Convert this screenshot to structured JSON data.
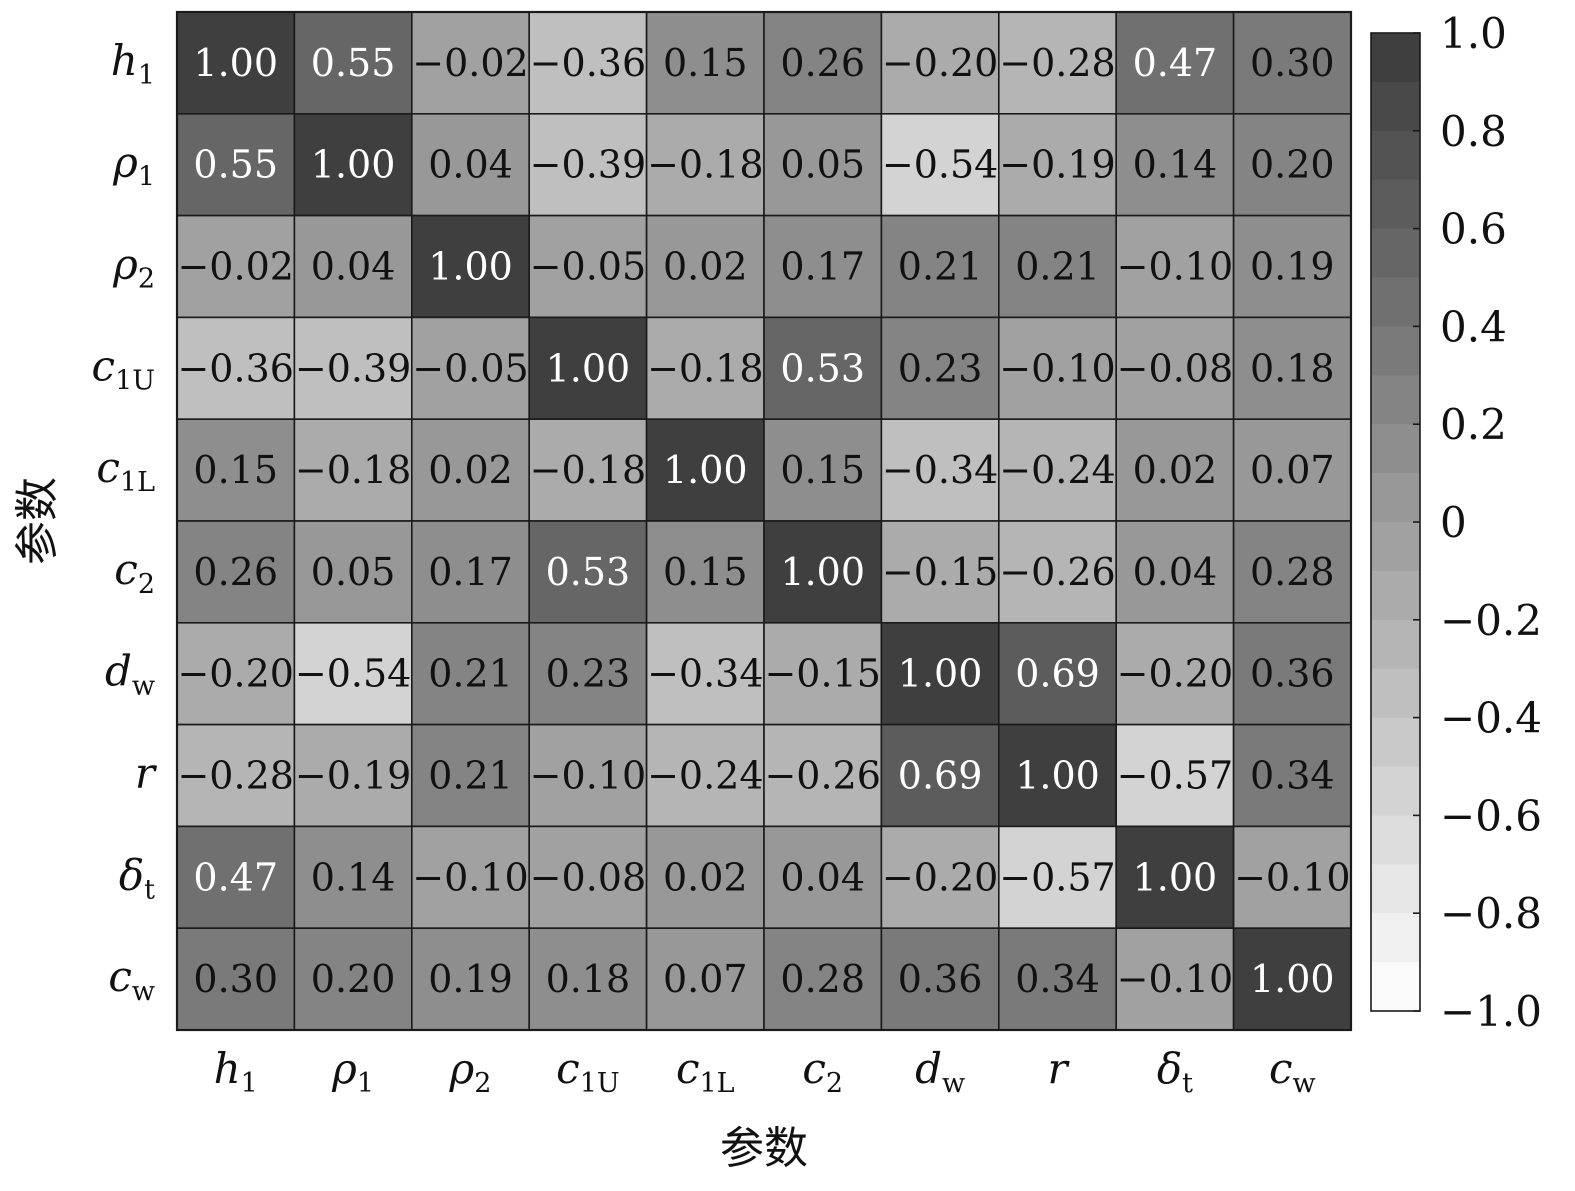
{
  "chart_data": {
    "type": "heatmap",
    "title": "",
    "xlabel": "参数",
    "ylabel": "参数",
    "labels": [
      {
        "base": "h",
        "sub": "1",
        "italic_sub": false
      },
      {
        "base": "ρ",
        "sub": "1",
        "italic_sub": false
      },
      {
        "base": "ρ",
        "sub": "2",
        "italic_sub": false
      },
      {
        "base": "c",
        "sub": "1U",
        "italic_sub": false
      },
      {
        "base": "c",
        "sub": "1L",
        "italic_sub": false
      },
      {
        "base": "c",
        "sub": "2",
        "italic_sub": false
      },
      {
        "base": "d",
        "sub": "w",
        "italic_sub": false
      },
      {
        "base": "r",
        "sub": "",
        "italic_sub": false
      },
      {
        "base": "δ",
        "sub": "t",
        "italic_sub": false
      },
      {
        "base": "c",
        "sub": "w",
        "italic_sub": false
      }
    ],
    "values": [
      [
        1.0,
        0.55,
        -0.02,
        -0.36,
        0.15,
        0.26,
        -0.2,
        -0.28,
        0.47,
        0.3
      ],
      [
        0.55,
        1.0,
        0.04,
        -0.39,
        -0.18,
        0.05,
        -0.54,
        -0.19,
        0.14,
        0.2
      ],
      [
        -0.02,
        0.04,
        1.0,
        -0.05,
        0.02,
        0.17,
        0.21,
        0.21,
        -0.1,
        0.19
      ],
      [
        -0.36,
        -0.39,
        -0.05,
        1.0,
        -0.18,
        0.53,
        0.23,
        -0.1,
        -0.08,
        0.18
      ],
      [
        0.15,
        -0.18,
        0.02,
        -0.18,
        1.0,
        0.15,
        -0.34,
        -0.24,
        0.02,
        0.07
      ],
      [
        0.26,
        0.05,
        0.17,
        0.53,
        0.15,
        1.0,
        -0.15,
        -0.26,
        0.04,
        0.28
      ],
      [
        -0.2,
        -0.54,
        0.21,
        0.23,
        -0.34,
        -0.15,
        1.0,
        0.69,
        -0.2,
        0.36
      ],
      [
        -0.28,
        -0.19,
        0.21,
        -0.1,
        -0.24,
        -0.26,
        0.69,
        1.0,
        -0.57,
        0.34
      ],
      [
        0.47,
        0.14,
        -0.1,
        -0.08,
        0.02,
        0.04,
        -0.2,
        -0.57,
        1.0,
        -0.1
      ],
      [
        0.3,
        0.2,
        0.19,
        0.18,
        0.07,
        0.28,
        0.36,
        0.34,
        -0.1,
        1.0
      ]
    ],
    "cell_labels": [
      [
        "1.00",
        "0.55",
        "−0.02",
        "−0.36",
        "0.15",
        "0.26",
        "−0.20",
        "−0.28",
        "0.47",
        "0.30"
      ],
      [
        "0.55",
        "1.00",
        "0.04",
        "−0.39",
        "−0.18",
        "0.05",
        "−0.54",
        "−0.19",
        "0.14",
        "0.20"
      ],
      [
        "−0.02",
        "0.04",
        "1.00",
        "−0.05",
        "0.02",
        "0.17",
        "0.21",
        "0.21",
        "−0.10",
        "0.19"
      ],
      [
        "−0.36",
        "−0.39",
        "−0.05",
        "1.00",
        "−0.18",
        "0.53",
        "0.23",
        "−0.10",
        "−0.08",
        "0.18"
      ],
      [
        "0.15",
        "−0.18",
        "0.02",
        "−0.18",
        "1.00",
        "0.15",
        "−0.34",
        "−0.24",
        "0.02",
        "0.07"
      ],
      [
        "0.26",
        "0.05",
        "0.17",
        "0.53",
        "0.15",
        "1.00",
        "−0.15",
        "−0.26",
        "0.04",
        "0.28"
      ],
      [
        "−0.20",
        "−0.54",
        "0.21",
        "0.23",
        "−0.34",
        "−0.15",
        "1.00",
        "0.69",
        "−0.20",
        "0.36"
      ],
      [
        "−0.28",
        "−0.19",
        "0.21",
        "−0.10",
        "−0.24",
        "−0.26",
        "0.69",
        "1.00",
        "−0.57",
        "0.34"
      ],
      [
        "0.47",
        "0.14",
        "−0.10",
        "−0.08",
        "0.02",
        "0.04",
        "−0.20",
        "−0.57",
        "1.00",
        "−0.10"
      ],
      [
        "0.30",
        "0.20",
        "0.19",
        "0.18",
        "0.07",
        "0.28",
        "0.36",
        "0.34",
        "−0.10",
        "1.00"
      ]
    ],
    "colorbar": {
      "vmin": -1.0,
      "vmax": 1.0,
      "levels": 20,
      "ticks": [
        1.0,
        0.8,
        0.6,
        0.4,
        0.2,
        0,
        -0.2,
        -0.4,
        -0.6,
        -0.8,
        -1.0
      ],
      "tick_labels": [
        "1.0",
        "0.8",
        "0.6",
        "0.4",
        "0.2",
        "0",
        "−0.2",
        "−0.4",
        "−0.6",
        "−0.8",
        "−1.0"
      ],
      "placement": "right"
    },
    "colormap": {
      "low": "#ffffff",
      "high": "#3a3a3a"
    },
    "text_color_dark": "#111111",
    "text_color_light": "#ffffff",
    "grid": true
  }
}
